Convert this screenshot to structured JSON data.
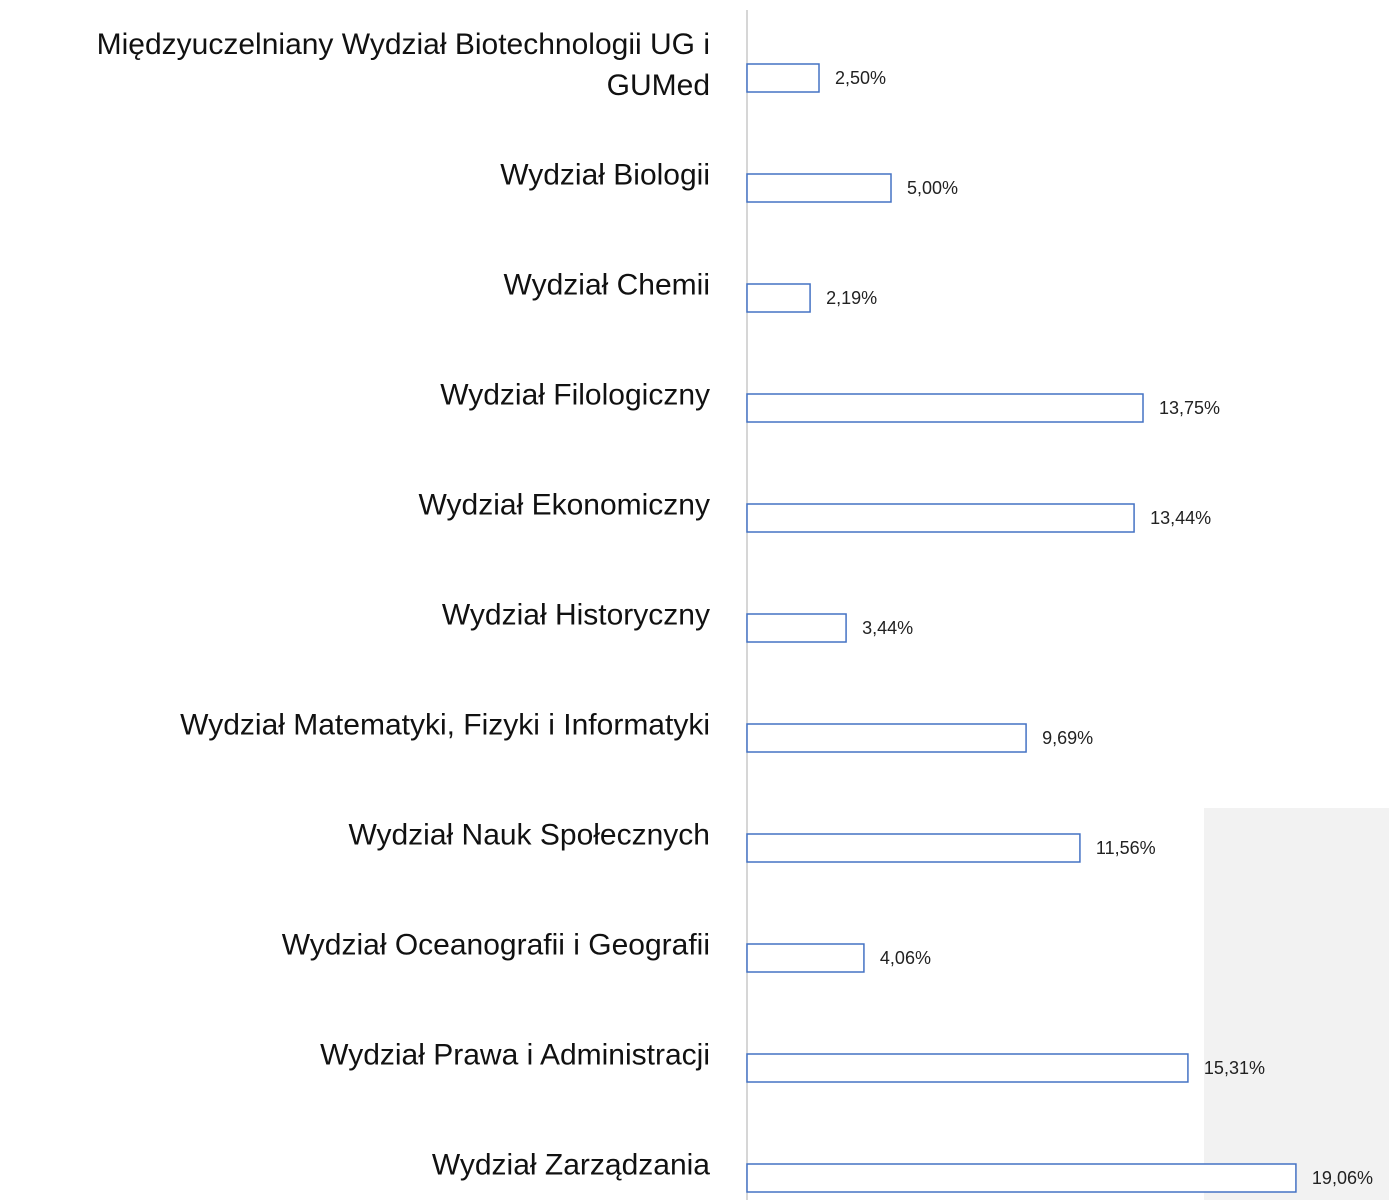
{
  "chart_data": {
    "type": "bar",
    "orientation": "horizontal",
    "categories": [
      "Międzyuczelniany Wydział Biotechnologii UG i GUMed",
      "Wydział Biologii",
      "Wydział Chemii",
      "Wydział Filologiczny",
      "Wydział Ekonomiczny",
      "Wydział Historyczny",
      "Wydział Matematyki, Fizyki i Informatyki",
      "Wydział Nauk Społecznych",
      "Wydział Oceanografii i Geografii",
      "Wydział Prawa i Administracji",
      "Wydział Zarządzania"
    ],
    "values": [
      2.5,
      5,
      2.19,
      13.75,
      13.44,
      3.44,
      9.69,
      11.56,
      4.06,
      15.31,
      19.06
    ],
    "value_labels": [
      "2,50%",
      "5,00%",
      "2,19%",
      "13,75%",
      "13,44%",
      "3,44%",
      "9,69%",
      "11,56%",
      "4,06%",
      "15,31%",
      "19,06%"
    ],
    "color": "#4472c4"
  }
}
